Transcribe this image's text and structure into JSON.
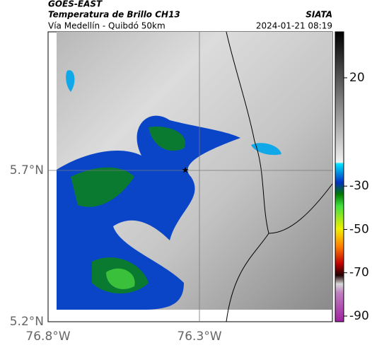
{
  "header": {
    "title": "GOES-EAST",
    "subtitle": "Temperatura de Brillo CH13",
    "source": "SIATA",
    "route": "Vía Medellín - Quibdó 50km",
    "datetime": "2024-01-21 08:19"
  },
  "map": {
    "lat_labels": [
      "5.7°N",
      "5.2°N"
    ],
    "lon_labels": [
      "76.8°W",
      "76.3°W"
    ]
  },
  "colorbar": {
    "ticks": [
      20,
      -30,
      -50,
      -70,
      -90
    ]
  }
}
